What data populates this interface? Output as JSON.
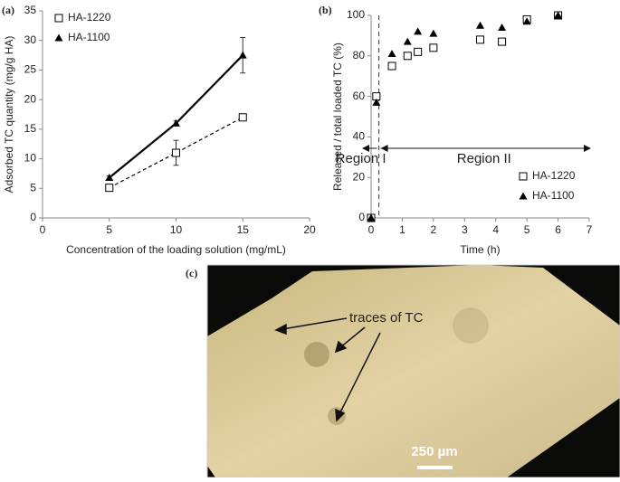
{
  "chart_data": [
    {
      "type": "line",
      "label": "(a)",
      "x_label": "Concentration of the loading solution (mg/mL)",
      "y_label": "Adsorbed TC quantity (mg/g HA)",
      "x": [
        5,
        10,
        15
      ],
      "series": [
        {
          "name": "HA-1220",
          "color": "#000000",
          "marker": "square-open",
          "line_style": "dashed",
          "values": [
            5.1,
            11,
            17
          ],
          "errors": [
            0.3,
            2.1,
            0.4
          ]
        },
        {
          "name": "HA-1100",
          "color": "#000000",
          "marker": "triangle",
          "line_style": "solid",
          "values": [
            6.8,
            16,
            27.5
          ],
          "errors": [
            0.3,
            0.4,
            3
          ]
        }
      ],
      "xlim": [
        0,
        20
      ],
      "xticks": [
        0,
        5,
        10,
        15,
        20
      ],
      "ylim": [
        0,
        35
      ],
      "yticks": [
        0,
        5,
        10,
        15,
        20,
        25,
        30,
        35
      ],
      "legend": "upper left"
    },
    {
      "type": "scatter",
      "label": "(b)",
      "x_label": "Time (h)",
      "y_label": "Released / total loaded TC (%)",
      "x": [
        0,
        0.17,
        0.67,
        1.17,
        1.5,
        2,
        3.5,
        4.2,
        5,
        6
      ],
      "series": [
        {
          "name": "HA-1220",
          "color": "#000000",
          "marker": "square-open",
          "values": [
            0,
            60,
            75,
            80,
            82,
            84,
            88,
            87,
            98,
            100
          ]
        },
        {
          "name": "HA-1100",
          "color": "#000000",
          "marker": "triangle",
          "values": [
            0,
            57,
            81,
            87,
            92,
            91,
            95,
            94,
            97,
            100
          ]
        }
      ],
      "xlim": [
        0,
        7
      ],
      "xticks": [
        0,
        1,
        2,
        3,
        4,
        5,
        6,
        7
      ],
      "ylim": [
        0,
        100
      ],
      "yticks": [
        0,
        20,
        40,
        60,
        80,
        100
      ],
      "region_divider_x": 0.25,
      "annotations": [
        "Region I",
        "Region II"
      ],
      "legend": "center right"
    }
  ],
  "image_panel": {
    "label": "(c)",
    "annotation": "traces of TC",
    "scale_bar": "250 µm"
  }
}
